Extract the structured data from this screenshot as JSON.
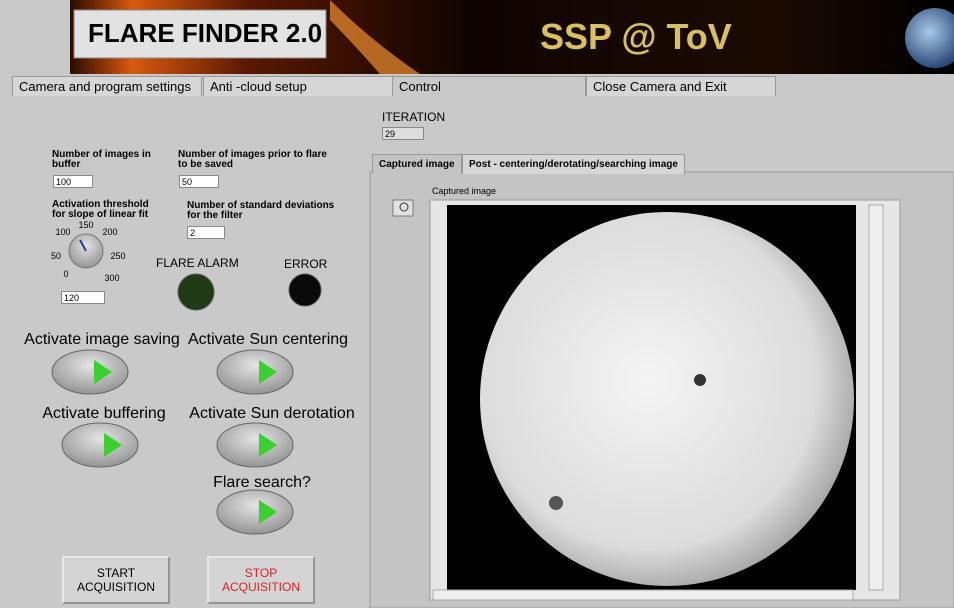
{
  "header": {
    "title": "FLARE FINDER 2.0",
    "banner": "SSP @ ToV"
  },
  "tabs": [
    "Camera and program settings",
    "Anti -cloud setup",
    "Control",
    "Close Camera and Exit"
  ],
  "iteration": {
    "label": "ITERATION",
    "value": "29"
  },
  "controls": {
    "buffer": {
      "label": "Number of images in buffer",
      "value": "100"
    },
    "prior": {
      "label": "Number of images prior to flare to be saved",
      "value": "50"
    },
    "threshold": {
      "label": "Activation threshold for slope of linear fit",
      "value": "120",
      "scale": [
        "0",
        "50",
        "100",
        "150",
        "200",
        "250",
        "300"
      ]
    },
    "stddev": {
      "label": "Number of standard deviations for the filter",
      "value": "2"
    }
  },
  "indicators": [
    {
      "label": "FLARE ALARM"
    },
    {
      "label": "ERROR"
    }
  ],
  "switches": [
    "Activate image saving",
    "Activate Sun centering",
    "Activate buffering",
    "Activate Sun derotation",
    "Flare search?"
  ],
  "buttons": [
    "START ACQUISITION",
    "STOP ACQUISITION"
  ],
  "image_tabs": [
    "Captured image",
    "Post - centering/derotating/searching image"
  ],
  "image_label": "Captured image"
}
